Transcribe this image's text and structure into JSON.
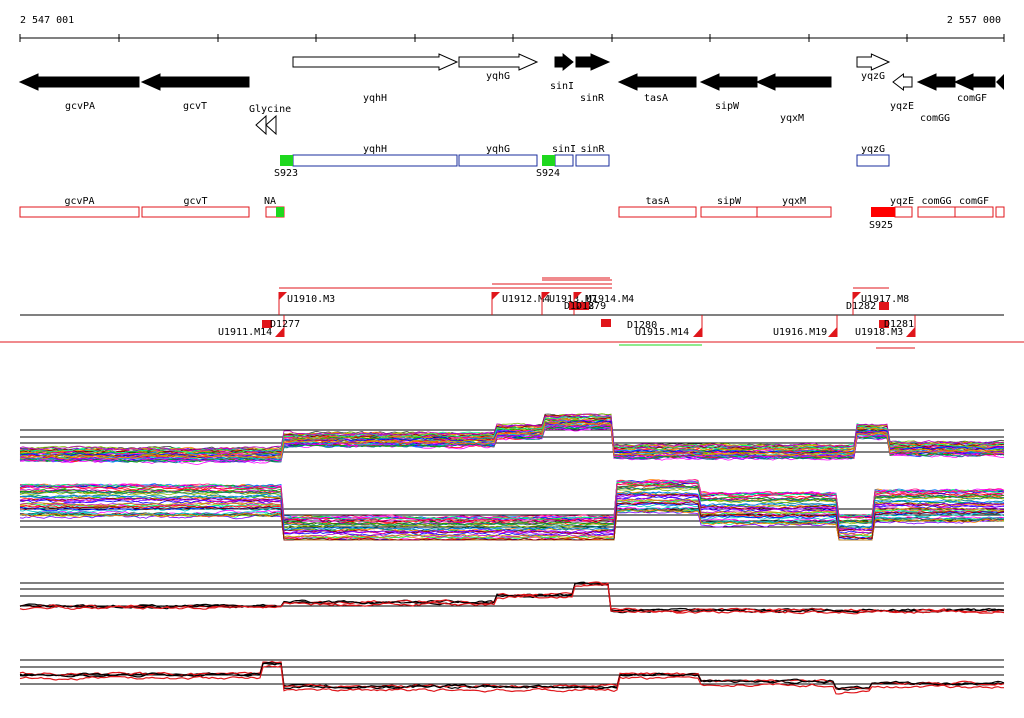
{
  "coords": {
    "start": "2 547 001",
    "end": "2 557 000"
  },
  "genes": [
    {
      "label": "gcvPA",
      "dir": "left",
      "fill": "black"
    },
    {
      "label": "gcvT",
      "dir": "left",
      "fill": "black"
    },
    {
      "label": "yqhH",
      "dir": "right",
      "fill": "white"
    },
    {
      "label": "yqhG",
      "dir": "right",
      "fill": "white"
    },
    {
      "label": "sinI",
      "dir": "right",
      "fill": "black"
    },
    {
      "label": "sinR",
      "dir": "right",
      "fill": "black"
    },
    {
      "label": "tasA",
      "dir": "left",
      "fill": "black"
    },
    {
      "label": "sipW",
      "dir": "left",
      "fill": "black"
    },
    {
      "label": "yqxM",
      "dir": "left",
      "fill": "black"
    },
    {
      "label": "yqzG",
      "dir": "right",
      "fill": "white"
    },
    {
      "label": "yqzE",
      "dir": "left",
      "fill": "white"
    },
    {
      "label": "comGG",
      "dir": "left",
      "fill": "black"
    },
    {
      "label": "comGF",
      "dir": "left",
      "fill": "black"
    }
  ],
  "riboswitch": {
    "label": "Glycine"
  },
  "plus_operons": {
    "boxes": [
      "yqhH",
      "yqhG",
      "sinI",
      "sinR",
      "yqzG"
    ],
    "promoters": [
      "S923",
      "S924"
    ]
  },
  "minus_operons": {
    "boxes": [
      "gcvPA",
      "gcvT",
      "NA",
      "tasA",
      "sipW",
      "yqxM",
      "yqzE",
      "comGG",
      "comGF"
    ],
    "promoters": [
      "S925"
    ]
  },
  "segments_plus": [
    "U1910.M3",
    "U1912.M4",
    "U1913.M7",
    "U1914.M4",
    "U1917.M8"
  ],
  "segments_minus": [
    "U1911.M14",
    "U1915.M14",
    "U1916.M19",
    "U1918.M3"
  ],
  "dips": [
    "D1277",
    "D1278",
    "D1279",
    "D1280",
    "D1282",
    "D1281"
  ],
  "colors": {
    "gene_outline": "#000000",
    "plus_strand": "#1a2e9c",
    "minus_strand": "#e0161b",
    "promoter_plus": "#1ed81e",
    "promoter_minus": "#ff0000",
    "profile_black": "#000000",
    "profile_red": "#e0161b"
  },
  "icons": {
    "riboswitch": "double-left-triangle-icon"
  }
}
